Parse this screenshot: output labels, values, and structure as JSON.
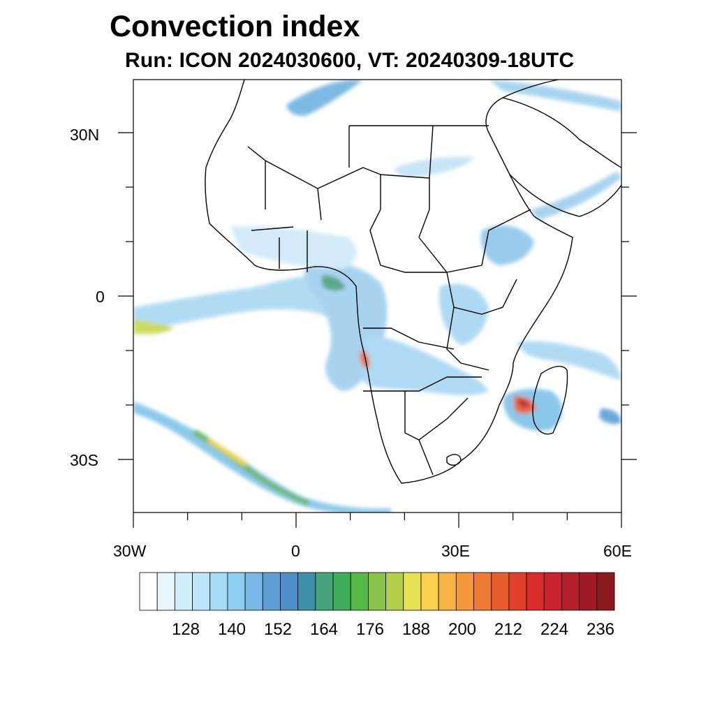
{
  "title": "Convection index",
  "subtitle": "Run: ICON 2024030600,  VT: 20240309-18UTC",
  "axes": {
    "lat_labels": [
      "30N",
      "0",
      "30S"
    ],
    "lon_labels": [
      "30W",
      "0",
      "30E",
      "60E"
    ]
  },
  "colorbar": {
    "labels": [
      "128",
      "140",
      "152",
      "164",
      "176",
      "188",
      "200",
      "212",
      "224",
      "236"
    ],
    "colors": [
      "#ffffff",
      "#e8f6fc",
      "#d2eefa",
      "#bce6f8",
      "#a4dcf5",
      "#8ccdf0",
      "#79b7e4",
      "#609fd6",
      "#4f8fc7",
      "#3d8fa8",
      "#46a37c",
      "#3fae5a",
      "#55b948",
      "#8ac24a",
      "#b4cf4e",
      "#e6e253",
      "#f8cf4e",
      "#f8b347",
      "#f4983e",
      "#ef7a35",
      "#e85d2e",
      "#e04029",
      "#d72d2a",
      "#c8232c",
      "#b41f2a",
      "#a01a25",
      "#8b1a1f"
    ]
  },
  "legend_colors": {
    "ocean": "#ffffff",
    "border": "#000000"
  }
}
